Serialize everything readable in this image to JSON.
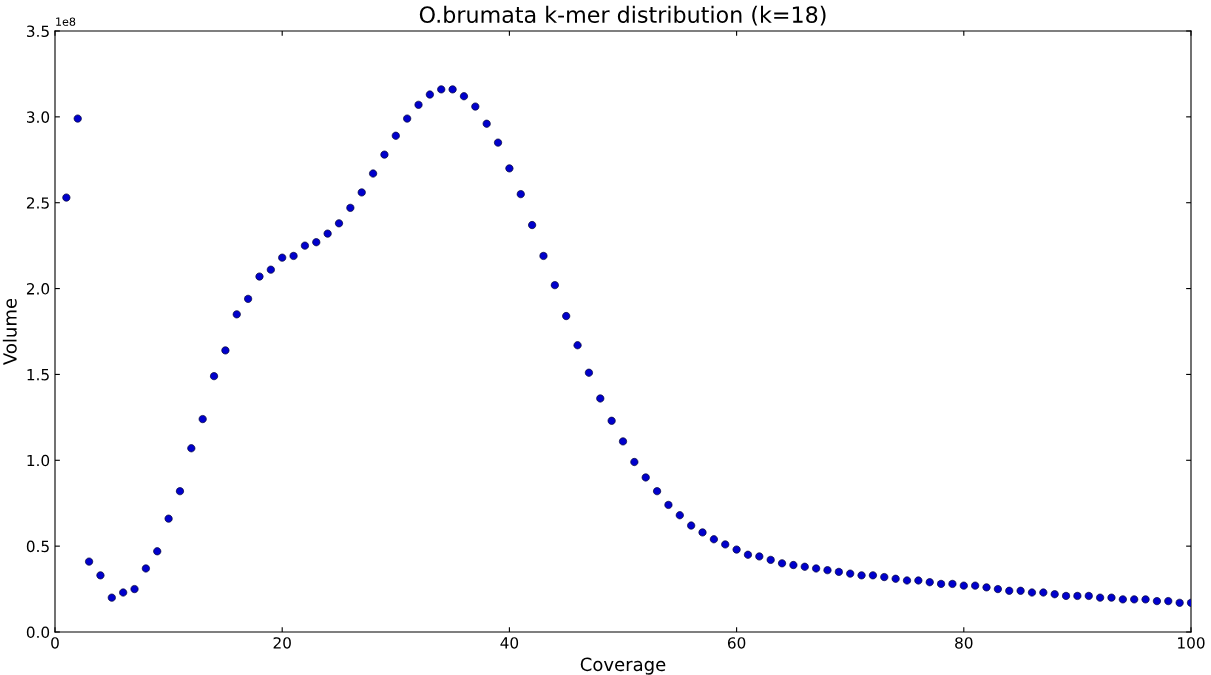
{
  "chart_data": {
    "type": "scatter",
    "title": "O.brumata k-mer distribution (k=18)",
    "xlabel": "Coverage",
    "ylabel": "Volume",
    "annotations": [
      "1e8"
    ],
    "x": [
      1,
      2,
      3,
      4,
      5,
      6,
      7,
      8,
      9,
      10,
      11,
      12,
      13,
      14,
      15,
      16,
      17,
      18,
      19,
      20,
      21,
      22,
      23,
      24,
      25,
      26,
      27,
      28,
      29,
      30,
      31,
      32,
      33,
      34,
      35,
      36,
      37,
      38,
      39,
      40,
      41,
      42,
      43,
      44,
      45,
      46,
      47,
      48,
      49,
      50,
      51,
      52,
      53,
      54,
      55,
      56,
      57,
      58,
      59,
      60,
      61,
      62,
      63,
      64,
      65,
      66,
      67,
      68,
      69,
      70,
      71,
      72,
      73,
      74,
      75,
      76,
      77,
      78,
      79,
      80,
      81,
      82,
      83,
      84,
      85,
      86,
      87,
      88,
      89,
      90,
      91,
      92,
      93,
      94,
      95,
      96,
      97,
      98,
      99,
      100
    ],
    "series": [
      {
        "color": "#0000cc",
        "values": [
          2.53,
          2.99,
          0.41,
          0.33,
          0.2,
          0.23,
          0.25,
          0.37,
          0.47,
          0.66,
          0.82,
          1.07,
          1.24,
          1.49,
          1.64,
          1.85,
          1.94,
          2.07,
          2.11,
          2.18,
          2.19,
          2.25,
          2.27,
          2.32,
          2.38,
          2.47,
          2.56,
          2.67,
          2.78,
          2.89,
          2.99,
          3.07,
          3.13,
          3.16,
          3.16,
          3.12,
          3.06,
          2.96,
          2.85,
          2.7,
          2.55,
          2.37,
          2.19,
          2.02,
          1.84,
          1.67,
          1.51,
          1.36,
          1.23,
          1.11,
          0.99,
          0.9,
          0.82,
          0.74,
          0.68,
          0.62,
          0.58,
          0.54,
          0.51,
          0.48,
          0.45,
          0.44,
          0.42,
          0.4,
          0.39,
          0.38,
          0.37,
          0.36,
          0.35,
          0.34,
          0.33,
          0.33,
          0.32,
          0.31,
          0.3,
          0.3,
          0.29,
          0.28,
          0.28,
          0.27,
          0.27,
          0.26,
          0.25,
          0.24,
          0.24,
          0.23,
          0.23,
          0.22,
          0.21,
          0.21,
          0.21,
          0.2,
          0.2,
          0.19,
          0.19,
          0.19,
          0.18,
          0.18,
          0.17,
          0.17
        ]
      }
    ],
    "xlim": [
      0,
      100
    ],
    "xticks": [
      0,
      20,
      40,
      60,
      80,
      100
    ],
    "ylim": [
      0,
      3.5
    ],
    "yticks": [
      {
        "value": 0,
        "label": "0.0"
      },
      0.5,
      {
        "value": 1,
        "label": "1.0"
      },
      1.5,
      {
        "value": 2,
        "label": "2.0"
      },
      2.5,
      {
        "value": 3,
        "label": "3.0"
      },
      3.5
    ],
    "marker": "circle",
    "grid": false
  }
}
